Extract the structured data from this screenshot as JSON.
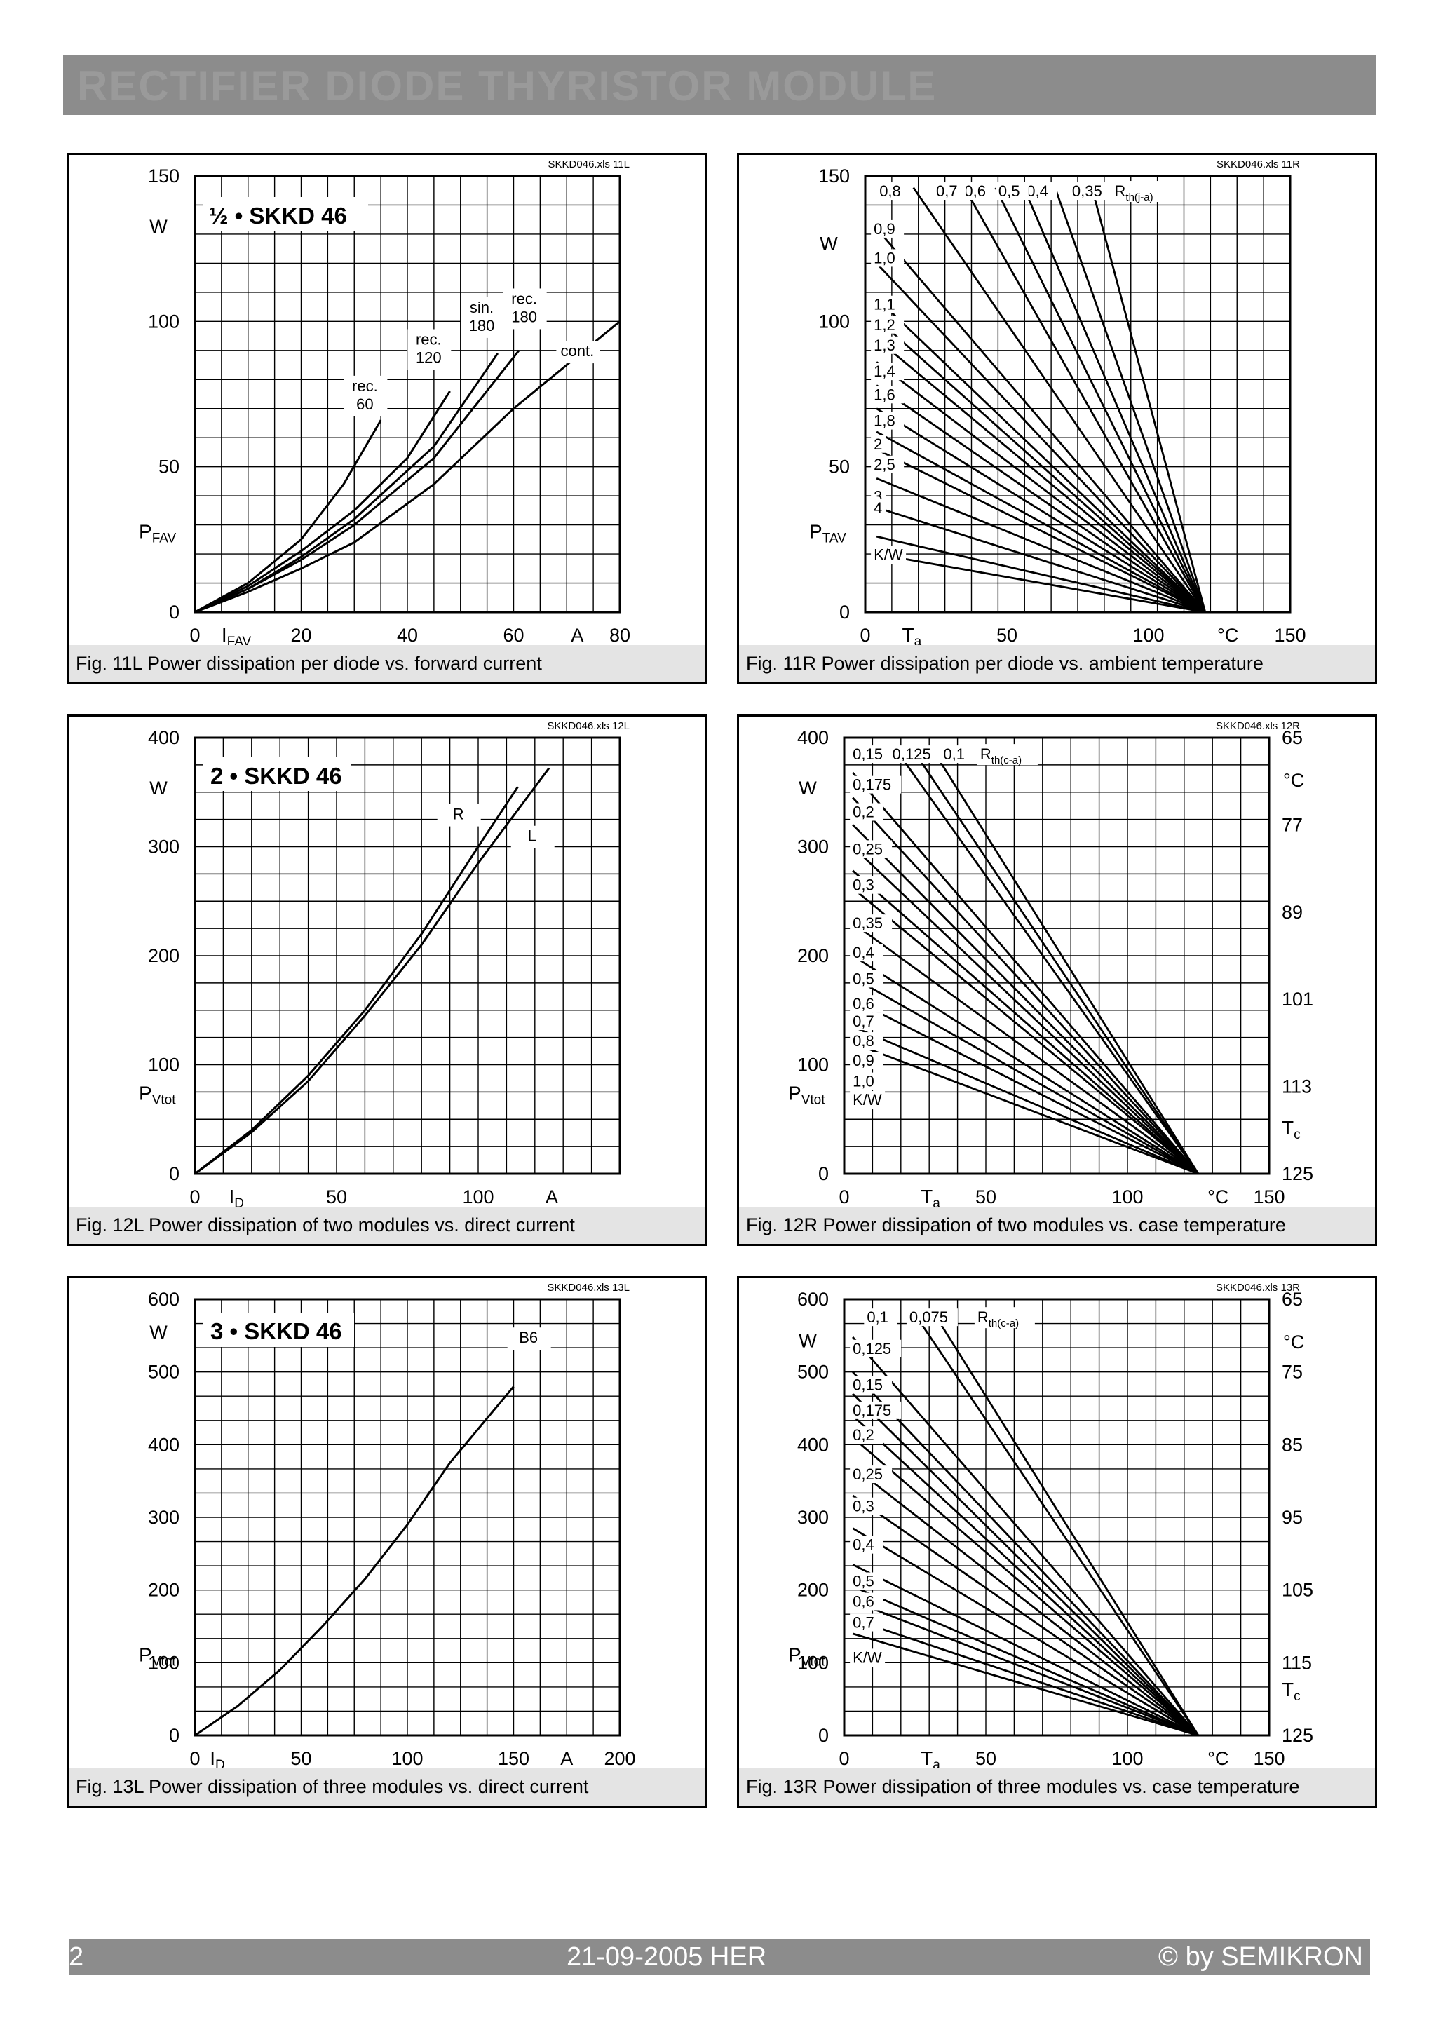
{
  "header": {
    "title": "RECTIFIER DIODE THYRISTOR MODULE"
  },
  "footer": {
    "page": "2",
    "date": "21-09-2005  HER",
    "copyright": "© by SEMIKRON"
  },
  "chart_data": [
    {
      "id": "11L",
      "type": "line",
      "file_label": "SKKD046.xls 11L",
      "title": "½ • SKKD 46",
      "caption": "Fig. 11L Power dissipation per diode vs. forward current",
      "xlabel_main": "I",
      "xlabel_sub": "FAV",
      "xunit": "A",
      "ylabel_main": "P",
      "ylabel_sub": "FAV",
      "yunit": "W",
      "xlim": [
        0,
        80
      ],
      "ylim": [
        0,
        150
      ],
      "xticks": [
        0,
        20,
        40,
        60,
        80
      ],
      "yticks": [
        0,
        50,
        100,
        150
      ],
      "series": [
        {
          "name": "rec. 60",
          "points": [
            [
              0,
              0
            ],
            [
              10,
              10
            ],
            [
              20,
              25
            ],
            [
              28,
              44
            ],
            [
              35,
              66
            ]
          ]
        },
        {
          "name": "rec. 120",
          "points": [
            [
              0,
              0
            ],
            [
              10,
              9
            ],
            [
              20,
              21
            ],
            [
              30,
              35
            ],
            [
              40,
              53
            ],
            [
              48,
              76
            ]
          ]
        },
        {
          "name": "sin. 180",
          "points": [
            [
              0,
              0
            ],
            [
              10,
              8
            ],
            [
              20,
              19
            ],
            [
              30,
              32
            ],
            [
              45,
              57
            ],
            [
              57,
              89
            ]
          ]
        },
        {
          "name": "rec. 180",
          "points": [
            [
              0,
              0
            ],
            [
              10,
              8
            ],
            [
              20,
              18
            ],
            [
              30,
              30
            ],
            [
              45,
              53
            ],
            [
              61,
              90
            ]
          ]
        },
        {
          "name": "cont.",
          "points": [
            [
              0,
              0
            ],
            [
              10,
              7
            ],
            [
              20,
              15
            ],
            [
              30,
              24
            ],
            [
              45,
              44
            ],
            [
              60,
              70
            ],
            [
              80,
              100
            ]
          ]
        }
      ]
    },
    {
      "id": "11R",
      "type": "line",
      "file_label": "SKKD046.xls 11R",
      "caption": "Fig. 11R Power dissipation per diode vs. ambient temperature",
      "xlabel_main": "T",
      "xlabel_sub": "a",
      "xunit": "°C",
      "ylabel_main": "P",
      "ylabel_sub": "TAV",
      "yunit": "W",
      "rth_label_main": "R",
      "rth_label_sub": "th(j-a)",
      "rth_unit": "K/W",
      "xlim": [
        0,
        150
      ],
      "ylim": [
        0,
        150
      ],
      "xticks": [
        0,
        50,
        100,
        150
      ],
      "yticks": [
        0,
        50,
        100,
        150
      ],
      "converge_x": 120,
      "rth_values": [
        "0,35",
        "0,4",
        "0,5",
        "0,6",
        "0,7",
        "0,8",
        "0,9",
        "1,0",
        "1,1",
        "1,2",
        "1,3",
        "1,4",
        "1,6",
        "1,8",
        "2",
        "2,5",
        "3",
        "4"
      ]
    },
    {
      "id": "12L",
      "type": "line",
      "file_label": "SKKD046.xls 12L",
      "title": "2 • SKKD 46",
      "caption": "Fig. 12L Power dissipation of two modules vs. direct current",
      "xlabel_main": "I",
      "xlabel_sub": "D",
      "xunit": "A",
      "ylabel_main": "P",
      "ylabel_sub": "Vtot",
      "yunit": "W",
      "xlim": [
        0,
        150
      ],
      "ylim": [
        0,
        400
      ],
      "xticks": [
        0,
        50,
        100
      ],
      "yticks": [
        0,
        100,
        200,
        300,
        400
      ],
      "series": [
        {
          "name": "R",
          "points": [
            [
              0,
              0
            ],
            [
              20,
              40
            ],
            [
              40,
              90
            ],
            [
              60,
              150
            ],
            [
              80,
              220
            ],
            [
              100,
              300
            ],
            [
              114,
              355
            ]
          ]
        },
        {
          "name": "L",
          "points": [
            [
              0,
              0
            ],
            [
              20,
              38
            ],
            [
              40,
              85
            ],
            [
              60,
              145
            ],
            [
              80,
              210
            ],
            [
              100,
              285
            ],
            [
              125,
              372
            ]
          ]
        }
      ]
    },
    {
      "id": "12R",
      "type": "line",
      "file_label": "SKKD046.xls 12R",
      "caption": "Fig. 12R Power dissipation of two modules vs. case temperature",
      "xlabel_main": "T",
      "xlabel_sub": "a",
      "xunit": "°C",
      "ylabel_main": "P",
      "ylabel_sub": "Vtot",
      "yunit": "W",
      "y2label_main": "T",
      "y2label_sub": "c",
      "y2unit": "°C",
      "rth_label_main": "R",
      "rth_label_sub": "th(c-a)",
      "rth_unit": "K/W",
      "xlim": [
        0,
        150
      ],
      "ylim": [
        0,
        400
      ],
      "xticks": [
        0,
        50,
        100,
        150
      ],
      "yticks": [
        0,
        100,
        200,
        300,
        400
      ],
      "y2ticks": [
        "125",
        "113",
        "101",
        "89",
        "77",
        "65"
      ],
      "converge_x": 125,
      "rth_values": [
        "0,1",
        "0,125",
        "0,15",
        "0,175",
        "0,2",
        "0,25",
        "0,3",
        "0,35",
        "0,4",
        "0,5",
        "0,6",
        "0,7",
        "0,8",
        "0,9",
        "1,0"
      ]
    },
    {
      "id": "13L",
      "type": "line",
      "file_label": "SKKD046.xls 13L",
      "title": "3 • SKKD 46",
      "caption": "Fig. 13L Power dissipation of three modules vs. direct current",
      "xlabel_main": "I",
      "xlabel_sub": "D",
      "xunit": "A",
      "ylabel_main": "P",
      "ylabel_sub": "Vtot",
      "yunit": "W",
      "xlim": [
        0,
        200
      ],
      "ylim": [
        0,
        600
      ],
      "xticks": [
        0,
        50,
        100,
        150,
        200
      ],
      "yticks": [
        0,
        100,
        200,
        300,
        400,
        500,
        600
      ],
      "series": [
        {
          "name": "B6",
          "points": [
            [
              0,
              0
            ],
            [
              20,
              40
            ],
            [
              40,
              90
            ],
            [
              60,
              150
            ],
            [
              80,
              215
            ],
            [
              100,
              290
            ],
            [
              120,
              375
            ],
            [
              150,
              480
            ]
          ]
        }
      ]
    },
    {
      "id": "13R",
      "type": "line",
      "file_label": "SKKD046.xls 13R",
      "caption": "Fig. 13R Power dissipation of three modules vs. case temperature",
      "xlabel_main": "T",
      "xlabel_sub": "a",
      "xunit": "°C",
      "ylabel_main": "P",
      "ylabel_sub": "Vtot",
      "yunit": "W",
      "y2label_main": "T",
      "y2label_sub": "c",
      "y2unit": "°C",
      "rth_label_main": "R",
      "rth_label_sub": "th(c-a)",
      "rth_unit": "K/W",
      "xlim": [
        0,
        150
      ],
      "ylim": [
        0,
        600
      ],
      "xticks": [
        0,
        50,
        100,
        150
      ],
      "yticks": [
        0,
        100,
        200,
        300,
        400,
        500,
        600
      ],
      "y2ticks": [
        "125",
        "115",
        "105",
        "95",
        "85",
        "75",
        "65"
      ],
      "converge_x": 125,
      "rth_values": [
        "0,075",
        "0,1",
        "0,125",
        "0,15",
        "0,175",
        "0,2",
        "0,25",
        "0,3",
        "0,4",
        "0,5",
        "0,6",
        "0,7"
      ]
    }
  ]
}
